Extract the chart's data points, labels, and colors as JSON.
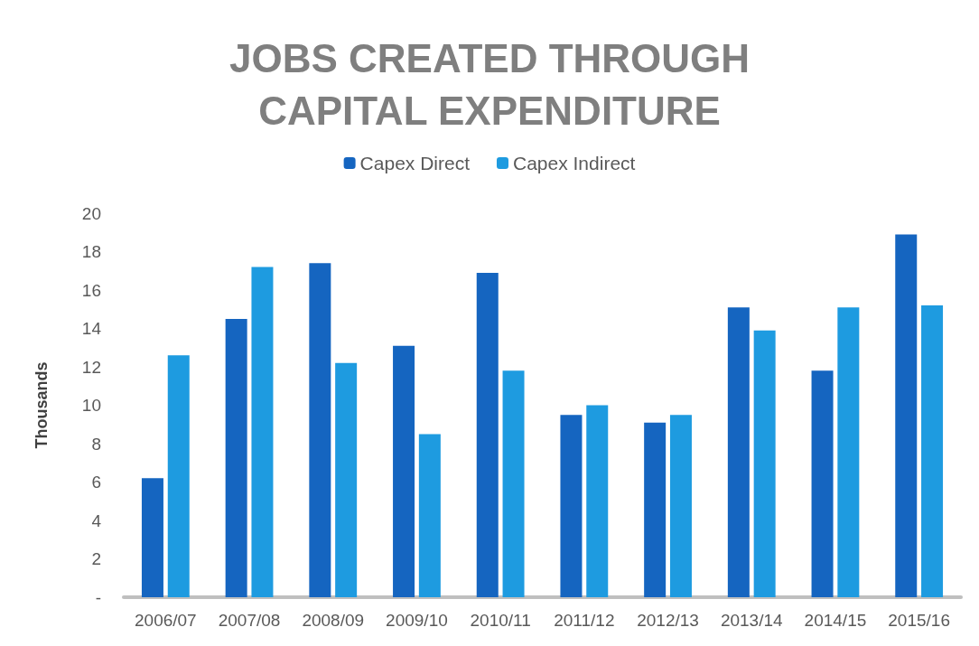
{
  "chart_data": {
    "type": "bar",
    "title": "JOBS CREATED THROUGH\nCAPITAL EXPENDITURE",
    "ylabel": "Thousands",
    "categories": [
      "2006/07",
      "2007/08",
      "2008/09",
      "2009/10",
      "2010/11",
      "2011/12",
      "2012/13",
      "2013/14",
      "2014/15",
      "2015/16"
    ],
    "series": [
      {
        "name": "Capex Direct",
        "color": "#1565c0",
        "values": [
          6.2,
          14.5,
          17.4,
          13.1,
          16.9,
          9.5,
          9.1,
          15.1,
          11.8,
          18.9
        ]
      },
      {
        "name": "Capex Indirect",
        "color": "#1e9be0",
        "values": [
          12.6,
          17.2,
          12.2,
          8.5,
          11.8,
          10.0,
          9.5,
          13.9,
          15.1,
          15.2
        ]
      }
    ],
    "ylim": [
      0,
      20
    ],
    "yticks": [
      {
        "value": 0,
        "label": "-"
      },
      2,
      4,
      6,
      8,
      10,
      12,
      14,
      16,
      18,
      20
    ],
    "grid": false,
    "legend": "top"
  }
}
